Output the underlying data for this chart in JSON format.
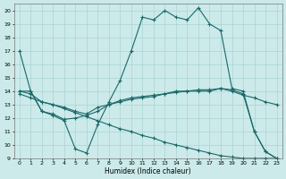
{
  "background_color": "#cceaea",
  "grid_color": "#aad4d4",
  "line_color": "#1a6868",
  "xlabel": "Humidex (Indice chaleur)",
  "xlim": [
    -0.5,
    23.5
  ],
  "ylim": [
    9,
    20.5
  ],
  "yticks": [
    9,
    10,
    11,
    12,
    13,
    14,
    15,
    16,
    17,
    18,
    19,
    20
  ],
  "xticks": [
    0,
    1,
    2,
    3,
    4,
    5,
    6,
    7,
    8,
    9,
    10,
    11,
    12,
    13,
    14,
    15,
    16,
    17,
    18,
    19,
    20,
    21,
    22,
    23
  ],
  "line1_x": [
    0,
    1,
    2,
    3,
    4,
    5,
    6,
    7,
    8,
    9,
    10,
    11,
    12,
    13,
    14,
    15,
    16,
    17,
    18,
    19,
    20,
    21,
    22,
    23
  ],
  "line1_y": [
    17.0,
    14.0,
    12.5,
    12.2,
    11.8,
    9.7,
    9.4,
    11.5,
    13.2,
    14.8,
    17.0,
    19.5,
    19.3,
    20.0,
    19.5,
    19.3,
    20.2,
    19.0,
    18.5,
    14.2,
    14.0,
    11.0,
    9.5,
    9.0
  ],
  "line2_x": [
    0,
    1,
    2,
    3,
    4,
    5,
    6,
    7,
    8,
    9,
    10,
    11,
    12,
    13,
    14,
    15,
    16,
    17,
    18,
    19,
    20,
    21,
    22,
    23
  ],
  "line2_y": [
    14.0,
    14.0,
    12.5,
    12.3,
    11.9,
    12.0,
    12.2,
    12.5,
    13.0,
    13.3,
    13.5,
    13.6,
    13.7,
    13.8,
    14.0,
    14.0,
    14.0,
    14.0,
    14.2,
    14.1,
    13.8,
    11.0,
    9.5,
    9.0
  ],
  "line3_x": [
    0,
    1,
    2,
    3,
    4,
    5,
    6,
    7,
    8,
    9,
    10,
    11,
    12,
    13,
    14,
    15,
    16,
    17,
    18,
    19,
    20,
    21,
    22,
    23
  ],
  "line3_y": [
    14.0,
    13.8,
    13.2,
    13.0,
    12.8,
    12.5,
    12.3,
    12.8,
    13.0,
    13.2,
    13.4,
    13.5,
    13.6,
    13.8,
    13.9,
    14.0,
    14.1,
    14.1,
    14.2,
    14.0,
    13.7,
    13.5,
    13.2,
    13.0
  ],
  "line4_x": [
    0,
    1,
    2,
    3,
    4,
    5,
    6,
    7,
    8,
    9,
    10,
    11,
    12,
    13,
    14,
    15,
    16,
    17,
    18,
    19,
    20,
    21,
    22,
    23
  ],
  "line4_y": [
    13.8,
    13.5,
    13.2,
    13.0,
    12.7,
    12.4,
    12.1,
    11.8,
    11.5,
    11.2,
    11.0,
    10.7,
    10.5,
    10.2,
    10.0,
    9.8,
    9.6,
    9.4,
    9.2,
    9.1,
    9.0,
    9.0,
    9.0,
    9.0
  ]
}
